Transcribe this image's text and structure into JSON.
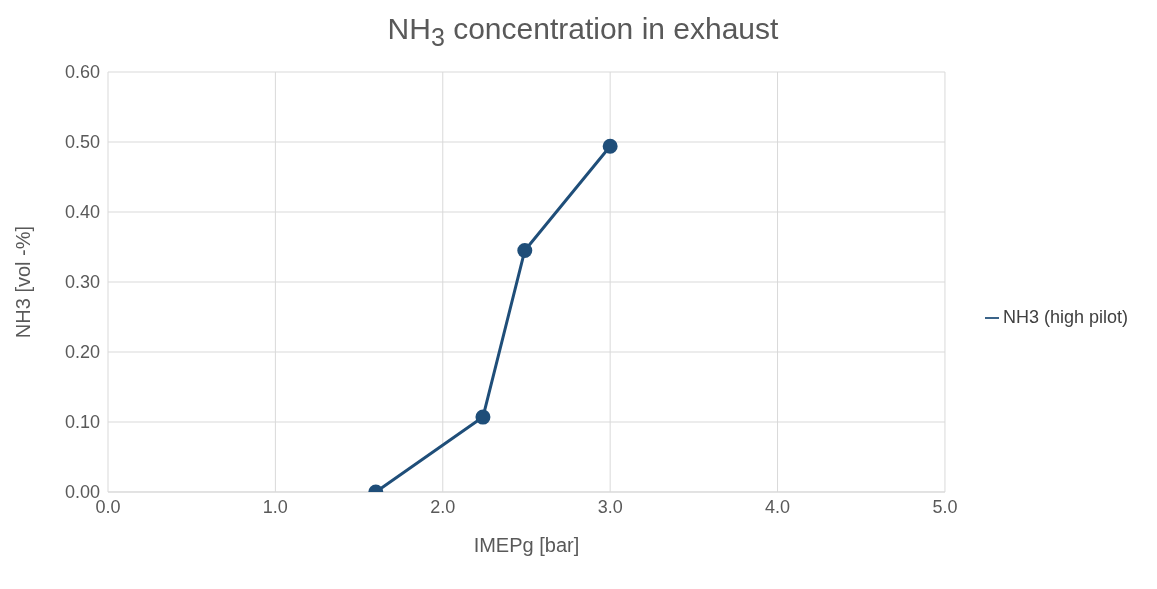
{
  "chart_data": {
    "type": "line",
    "title": "NH$_{3}$ concentration in exhaust",
    "xlabel": "IMEPg [bar]",
    "ylabel": "NH3 [vol -%]",
    "x": [
      1.6,
      2.24,
      2.49,
      3.0
    ],
    "series": [
      {
        "name": "NH3 (high pilot)",
        "color": "#1f4e79",
        "values": [
          0.0,
          0.107,
          0.345,
          0.494
        ]
      }
    ],
    "xlim": [
      0,
      5
    ],
    "xticks": [
      {
        "value": 0,
        "label": "0.0"
      },
      {
        "value": 1,
        "label": "1.0"
      },
      {
        "value": 2,
        "label": "2.0"
      },
      {
        "value": 3,
        "label": "3.0"
      },
      {
        "value": 4,
        "label": "4.0"
      },
      {
        "value": 5,
        "label": "5.0"
      }
    ],
    "ylim": [
      0,
      0.6
    ],
    "yticks": [
      {
        "value": 0,
        "label": "0.00"
      },
      {
        "value": 0.1,
        "label": "0.10"
      },
      {
        "value": 0.2,
        "label": "0.20"
      },
      {
        "value": 0.3,
        "label": "0.30"
      },
      {
        "value": 0.4,
        "label": "0.40"
      },
      {
        "value": 0.5,
        "label": "0.50"
      },
      {
        "value": 0.6,
        "label": "0.60"
      }
    ],
    "grid": true,
    "legend": "right",
    "marker": "circle",
    "line_style": "solid"
  }
}
